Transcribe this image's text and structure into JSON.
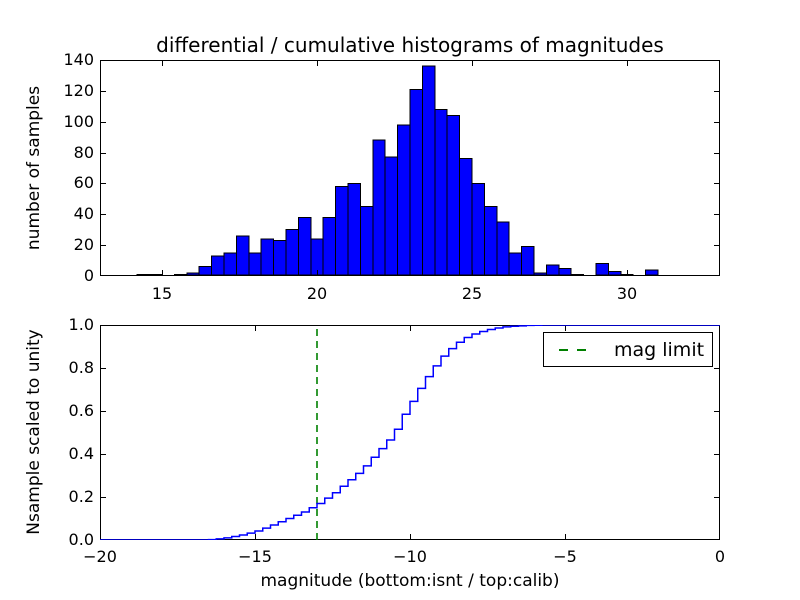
{
  "figure": {
    "title": "differential / cumulative histograms of magnitudes"
  },
  "colors": {
    "background": "#ffffff",
    "axis": "#000000",
    "text": "#000000",
    "hist_fill": "#0000ff",
    "hist_edge": "#000000",
    "cumulative_line": "#0000ff",
    "mag_limit_line": "#008000"
  },
  "chart_data": [
    {
      "type": "bar",
      "name": "differential-histogram",
      "title": "differential / cumulative histograms of magnitudes",
      "ylabel": "number of samples",
      "xlim": [
        13,
        33
      ],
      "ylim": [
        0,
        140
      ],
      "xticks": [
        15,
        20,
        25,
        30
      ],
      "xtick_labels": [
        "15",
        "20",
        "25",
        "30"
      ],
      "yticks": [
        0,
        20,
        40,
        60,
        80,
        100,
        120,
        140
      ],
      "ytick_labels": [
        "0",
        "20",
        "40",
        "60",
        "80",
        "100",
        "120",
        "140"
      ],
      "grid": false,
      "bin_start": 14.2,
      "bin_width": 0.4,
      "counts": [
        1,
        1,
        0,
        1,
        2,
        6,
        13,
        15,
        26,
        15,
        24,
        23,
        30,
        38,
        24,
        38,
        58,
        60,
        45,
        88,
        77,
        98,
        121,
        136,
        108,
        104,
        76,
        60,
        45,
        35,
        15,
        19,
        2,
        7,
        5,
        1,
        0,
        8,
        3,
        1,
        0,
        4
      ],
      "bar_color": "#0000ff",
      "bar_edge": "#000000"
    },
    {
      "type": "line",
      "name": "cumulative-histogram",
      "xlabel": "magnitude (bottom:isnt / top:calib)",
      "ylabel": "Nsample scaled to unity",
      "xlim": [
        -20,
        0
      ],
      "ylim": [
        0,
        1.0
      ],
      "xticks": [
        -20,
        -15,
        -10,
        -5,
        0
      ],
      "xtick_labels": [
        "−20",
        "−15",
        "−10",
        "−5",
        "0"
      ],
      "yticks": [
        0.0,
        0.2,
        0.4,
        0.6,
        0.8,
        1.0
      ],
      "ytick_labels": [
        "0.0",
        "0.2",
        "0.4",
        "0.6",
        "0.8",
        "1.0"
      ],
      "grid": false,
      "step": true,
      "x": [
        -20,
        -16.5,
        -16.25,
        -16,
        -15.75,
        -15.5,
        -15.25,
        -15,
        -14.75,
        -14.5,
        -14.25,
        -14,
        -13.75,
        -13.5,
        -13.25,
        -13,
        -12.75,
        -12.5,
        -12.25,
        -12,
        -11.75,
        -11.5,
        -11.25,
        -11,
        -10.75,
        -10.5,
        -10.25,
        -10,
        -9.75,
        -9.5,
        -9.25,
        -9,
        -8.75,
        -8.5,
        -8.25,
        -8,
        -7.75,
        -7.5,
        -7.25,
        -7,
        -6.75,
        -6.5,
        -6.25,
        -6,
        -5.75,
        -5.5,
        0
      ],
      "y": [
        0,
        0.002,
        0.005,
        0.01,
        0.016,
        0.023,
        0.032,
        0.042,
        0.055,
        0.07,
        0.085,
        0.1,
        0.115,
        0.13,
        0.15,
        0.17,
        0.195,
        0.22,
        0.25,
        0.28,
        0.31,
        0.345,
        0.385,
        0.425,
        0.465,
        0.515,
        0.585,
        0.645,
        0.705,
        0.76,
        0.81,
        0.855,
        0.89,
        0.92,
        0.942,
        0.958,
        0.97,
        0.979,
        0.986,
        0.991,
        0.994,
        0.996,
        0.998,
        0.999,
        1.0,
        1.0,
        1.0
      ],
      "line_color": "#0000ff",
      "mag_limit": {
        "x": -13,
        "color": "#008000",
        "style": "dashed"
      },
      "legend": {
        "label": "mag limit",
        "position": "upper right"
      }
    }
  ]
}
